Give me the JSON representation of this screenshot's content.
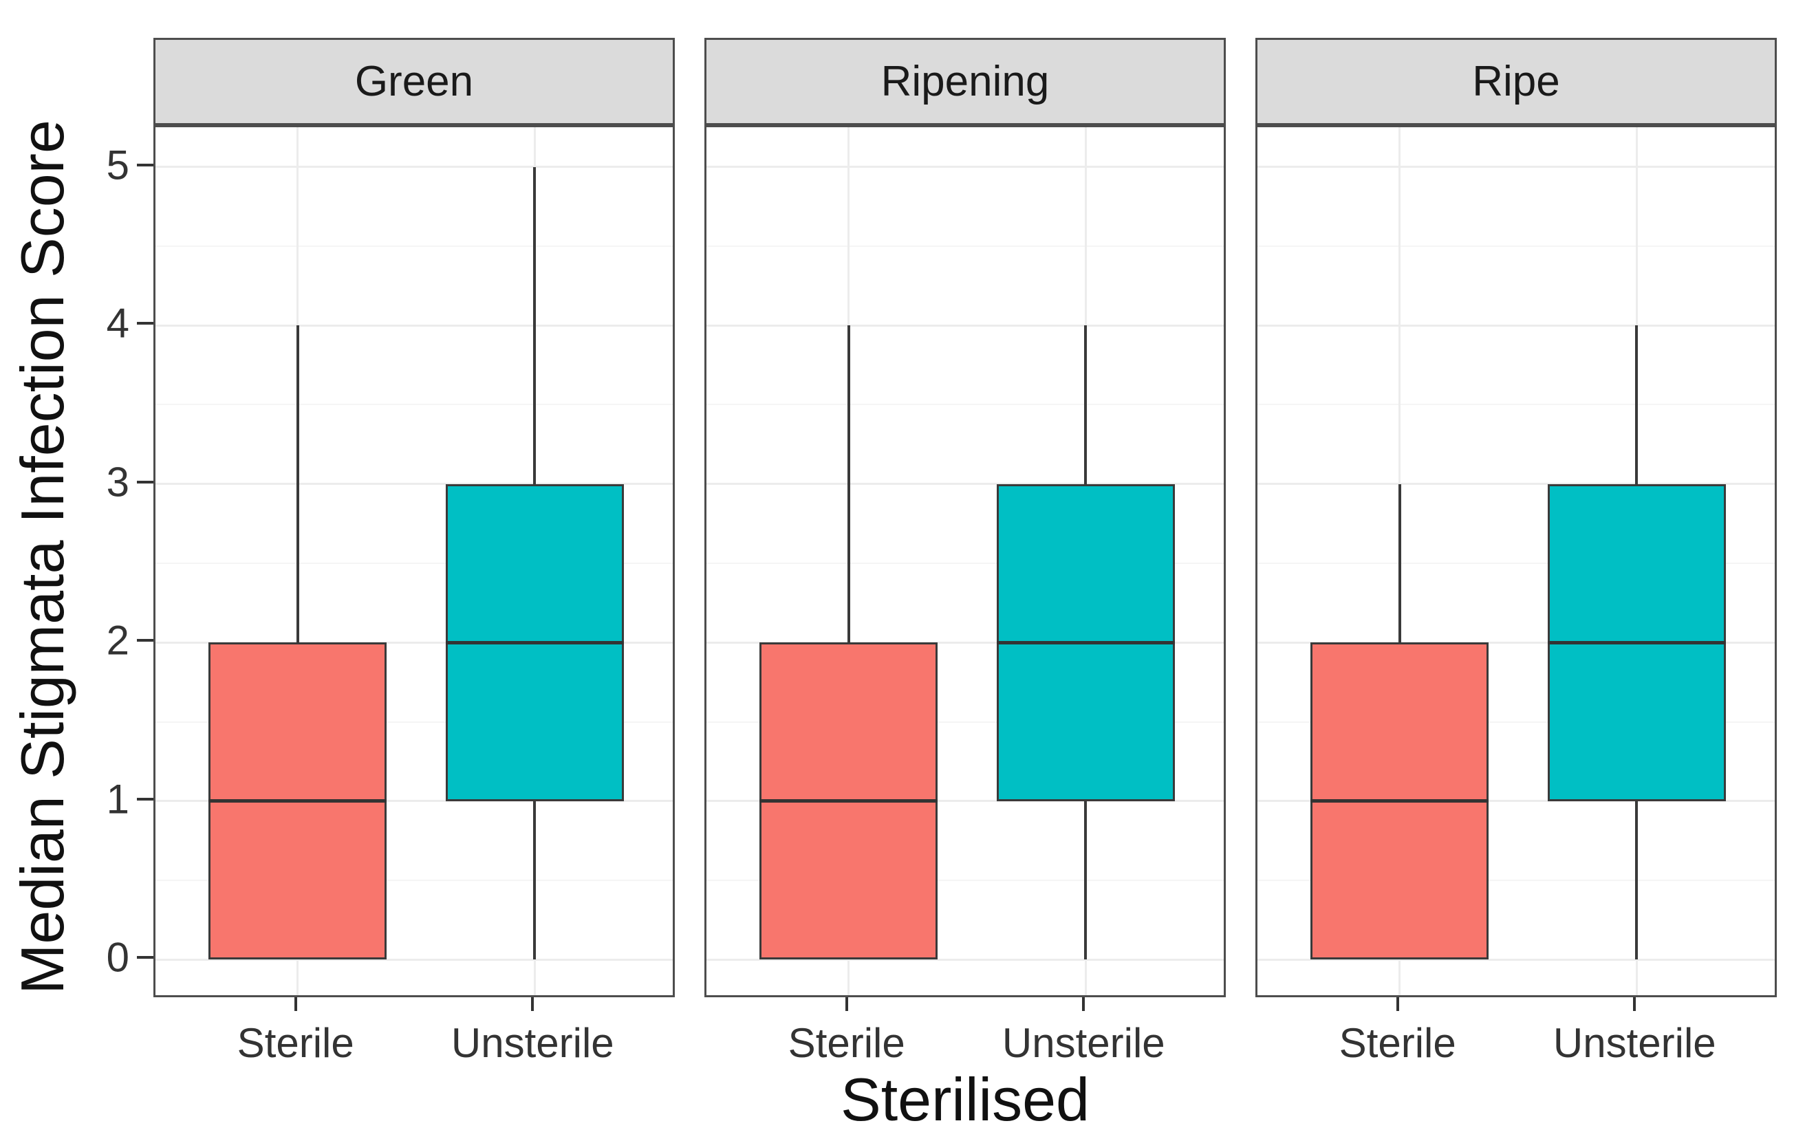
{
  "chart_data": {
    "type": "boxplot",
    "facet_variable_values": [
      "Green",
      "Ripening",
      "Ripe"
    ],
    "categories": [
      "Sterile",
      "Unsterile"
    ],
    "groups": [
      {
        "name": "Sterile",
        "fill": "#F8766D"
      },
      {
        "name": "Unsterile",
        "fill": "#00BFC4"
      }
    ],
    "xlabel": "Sterilised",
    "ylabel": "Median Stigmata Infection Score",
    "ylim": [
      0,
      5
    ],
    "yticks": [
      0,
      1,
      2,
      3,
      4,
      5
    ],
    "grid": "major-and-minor",
    "legend_position": "none",
    "facets": [
      {
        "label": "Green",
        "boxes": [
          {
            "category": "Sterile",
            "fill": "#F8766D",
            "whisker_low": 0,
            "q1": 0,
            "median": 1,
            "q3": 2,
            "whisker_high": 4
          },
          {
            "category": "Unsterile",
            "fill": "#00BFC4",
            "whisker_low": 0,
            "q1": 1,
            "median": 2,
            "q3": 3,
            "whisker_high": 5
          }
        ]
      },
      {
        "label": "Ripening",
        "boxes": [
          {
            "category": "Sterile",
            "fill": "#F8766D",
            "whisker_low": 0,
            "q1": 0,
            "median": 1,
            "q3": 2,
            "whisker_high": 4
          },
          {
            "category": "Unsterile",
            "fill": "#00BFC4",
            "whisker_low": 0,
            "q1": 1,
            "median": 2,
            "q3": 3,
            "whisker_high": 4
          }
        ]
      },
      {
        "label": "Ripe",
        "boxes": [
          {
            "category": "Sterile",
            "fill": "#F8766D",
            "whisker_low": 0,
            "q1": 0,
            "median": 1,
            "q3": 2,
            "whisker_high": 3
          },
          {
            "category": "Unsterile",
            "fill": "#00BFC4",
            "whisker_low": 0,
            "q1": 1,
            "median": 2,
            "q3": 3,
            "whisker_high": 4
          }
        ]
      }
    ],
    "style": {
      "strip_background": "#DBDBDB",
      "panel_border": "#4D4D4D",
      "box_outline": "#3A3A3A",
      "major_grid": "#ECECEC",
      "minor_grid": "#F5F5F5"
    }
  }
}
